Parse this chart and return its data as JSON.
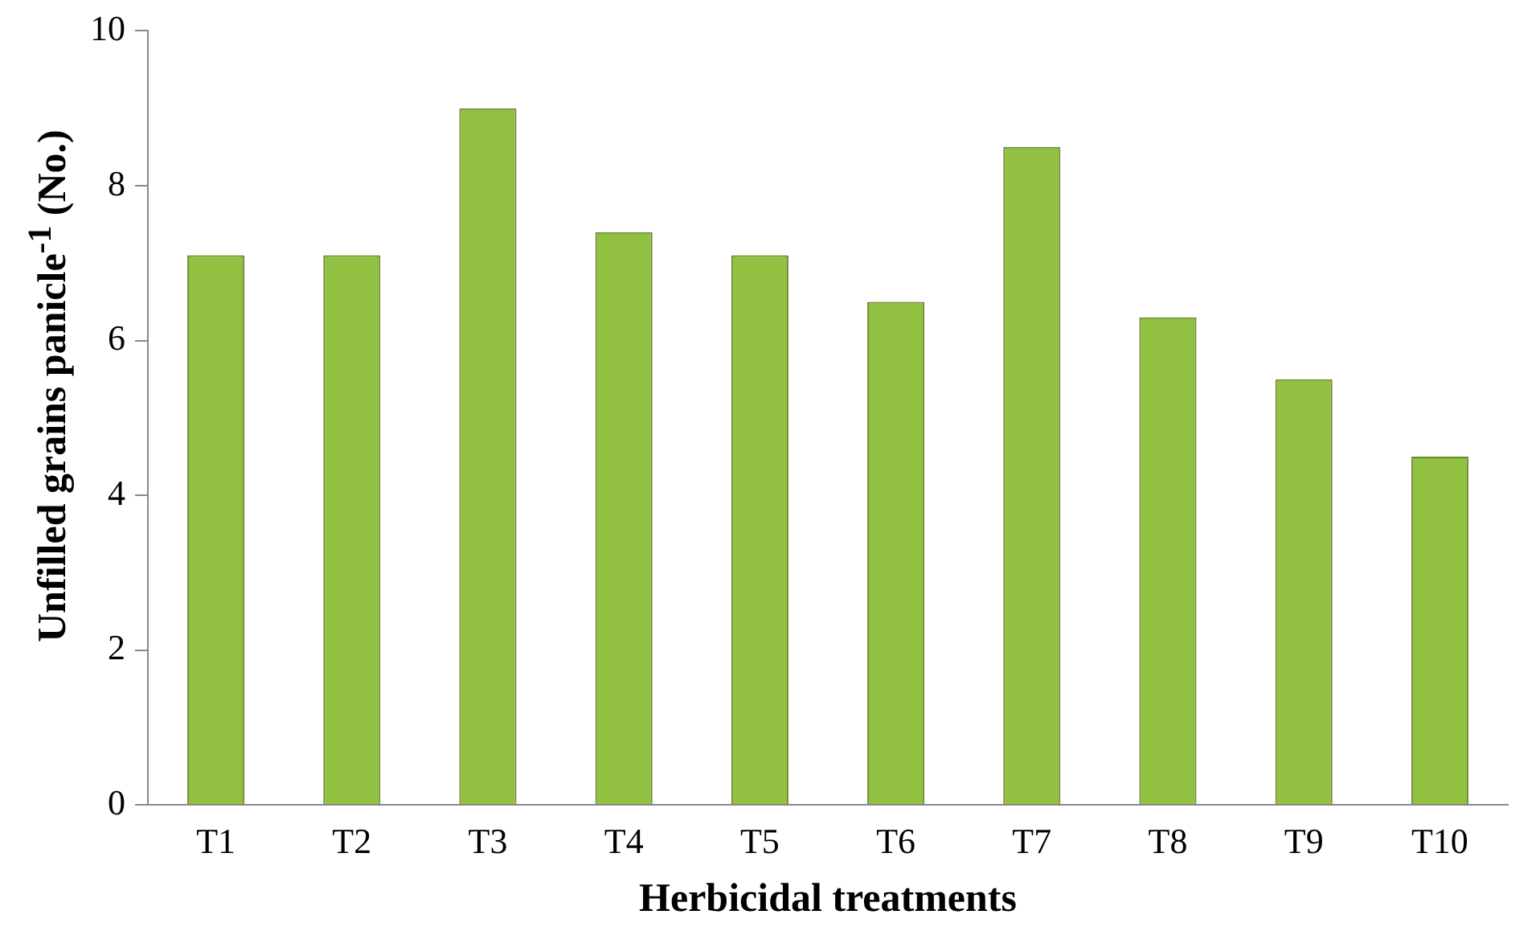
{
  "chart_data": {
    "type": "bar",
    "xlabel": "Herbicidal treatments",
    "ylabel": "Unfilled grains panicle$^{-1}$ (No.)",
    "categories": [
      "T1",
      "T2",
      "T3",
      "T4",
      "T5",
      "T6",
      "T7",
      "T8",
      "T9",
      "T10"
    ],
    "values": [
      7.1,
      7.1,
      9.0,
      7.4,
      7.1,
      6.5,
      8.5,
      6.3,
      5.5,
      4.5
    ],
    "color": "#92c040",
    "ylim": [
      0,
      10
    ],
    "yticks": [
      0,
      2,
      4,
      6,
      8,
      10
    ],
    "grid": false,
    "legend": false
  }
}
